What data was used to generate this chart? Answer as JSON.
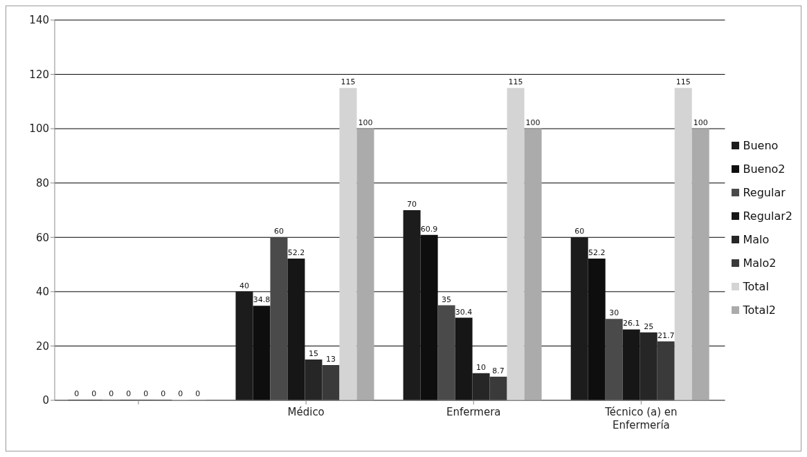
{
  "chart_data": {
    "type": "bar",
    "categories": [
      null,
      "Médico",
      "Enfermera",
      "Técnico (a) en Enfermería"
    ],
    "series": [
      {
        "name": "Bueno",
        "color": "#1c1c1c",
        "values": [
          0,
          40,
          70,
          60
        ]
      },
      {
        "name": "Bueno2",
        "color": "#0e0e0e",
        "values": [
          0,
          34.8,
          60.9,
          52.2
        ]
      },
      {
        "name": "Regular",
        "color": "#4a4a4a",
        "values": [
          0,
          60,
          35,
          30
        ]
      },
      {
        "name": "Regular2",
        "color": "#161616",
        "values": [
          0,
          52.2,
          30.4,
          26.1
        ]
      },
      {
        "name": "Malo",
        "color": "#262626",
        "values": [
          0,
          15,
          10,
          25
        ]
      },
      {
        "name": "Malo2",
        "color": "#3a3a3a",
        "values": [
          0,
          13,
          8.7,
          21.7
        ]
      },
      {
        "name": "Total",
        "color": "#d4d4d4",
        "values": [
          0,
          115,
          115,
          115
        ]
      },
      {
        "name": "Total2",
        "color": "#ababab",
        "values": [
          0,
          100,
          100,
          100
        ]
      }
    ],
    "ylim": [
      0,
      140
    ],
    "yticks": [
      0,
      20,
      40,
      60,
      80,
      100,
      120,
      140
    ],
    "grid": "y",
    "legend": "right",
    "data_labels": true
  }
}
